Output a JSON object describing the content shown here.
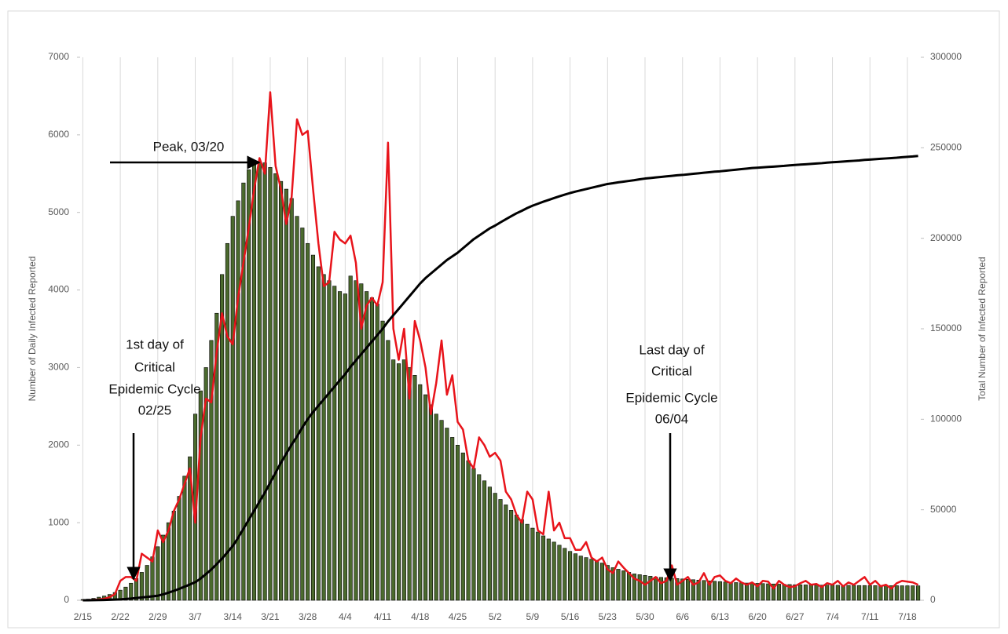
{
  "chart_data": {
    "type": "combo",
    "y_label": "Number of Daily Infected Reported",
    "y2_label": "Total Number of Infected Reported",
    "ylim": [
      0,
      7000
    ],
    "yticks": [
      0,
      1000,
      2000,
      3000,
      4000,
      5000,
      6000,
      7000
    ],
    "y2lim": [
      0,
      300000
    ],
    "y2ticks": [
      0,
      50000,
      100000,
      150000,
      200000,
      250000,
      300000
    ],
    "grid": "x",
    "categories": [
      "2/15",
      null,
      null,
      null,
      null,
      null,
      null,
      "2/22",
      null,
      null,
      null,
      null,
      null,
      null,
      "2/29",
      null,
      null,
      null,
      null,
      null,
      null,
      "3/7",
      null,
      null,
      null,
      null,
      null,
      null,
      "3/14",
      null,
      null,
      null,
      null,
      null,
      null,
      "3/21",
      null,
      null,
      null,
      null,
      null,
      null,
      "3/28",
      null,
      null,
      null,
      null,
      null,
      null,
      "4/4",
      null,
      null,
      null,
      null,
      null,
      null,
      "4/11",
      null,
      null,
      null,
      null,
      null,
      null,
      "4/18",
      null,
      null,
      null,
      null,
      null,
      null,
      "4/25",
      null,
      null,
      null,
      null,
      null,
      null,
      "5/2",
      null,
      null,
      null,
      null,
      null,
      null,
      "5/9",
      null,
      null,
      null,
      null,
      null,
      null,
      "5/16",
      null,
      null,
      null,
      null,
      null,
      null,
      "5/23",
      null,
      null,
      null,
      null,
      null,
      null,
      "5/30",
      null,
      null,
      null,
      null,
      null,
      null,
      "6/6",
      null,
      null,
      null,
      null,
      null,
      null,
      "6/13",
      null,
      null,
      null,
      null,
      null,
      null,
      "6/20",
      null,
      null,
      null,
      null,
      null,
      null,
      "6/27",
      null,
      null,
      null,
      null,
      null,
      null,
      "7/4",
      null,
      null,
      null,
      null,
      null,
      null,
      "7/11",
      null,
      null,
      null,
      null,
      null,
      null,
      "7/18",
      null,
      null
    ],
    "series": [
      {
        "type": "bar",
        "color": "#4b6a2e",
        "values": [
          10,
          15,
          25,
          40,
          55,
          75,
          100,
          130,
          170,
          220,
          280,
          360,
          450,
          560,
          690,
          840,
          1000,
          1150,
          1340,
          1600,
          1850,
          2400,
          2700,
          3000,
          3350,
          3700,
          4200,
          4600,
          4950,
          5150,
          5380,
          5550,
          5650,
          5650,
          5640,
          5580,
          5500,
          5400,
          5300,
          5180,
          4950,
          4800,
          4600,
          4450,
          4300,
          4200,
          4120,
          4050,
          3980,
          3950,
          4180,
          4120,
          4080,
          3980,
          3900,
          3820,
          3600,
          3350,
          3100,
          3050,
          3100,
          3000,
          2900,
          2780,
          2650,
          2520,
          2400,
          2320,
          2220,
          2100,
          2000,
          1900,
          1800,
          1700,
          1620,
          1540,
          1460,
          1380,
          1300,
          1230,
          1160,
          1100,
          1040,
          980,
          930,
          880,
          830,
          790,
          750,
          710,
          670,
          630,
          600,
          570,
          550,
          530,
          510,
          480,
          450,
          420,
          400,
          380,
          360,
          340,
          330,
          320,
          310,
          300,
          295,
          290,
          285,
          280,
          275,
          270,
          265,
          260,
          255,
          250,
          245,
          240,
          235,
          230,
          228,
          225,
          222,
          220,
          218,
          215,
          212,
          210,
          208,
          205,
          203,
          200,
          200,
          198,
          197,
          196,
          195,
          195,
          194,
          193,
          192,
          192,
          191,
          190,
          190,
          190,
          189,
          189,
          188,
          188,
          188,
          187,
          187,
          187,
          186
        ]
      },
      {
        "type": "line",
        "color": "#e8141b",
        "values": [
          0,
          2,
          5,
          10,
          20,
          40,
          80,
          250,
          300,
          300,
          250,
          600,
          550,
          500,
          900,
          750,
          900,
          1150,
          1300,
          1500,
          1700,
          1000,
          2100,
          2600,
          2550,
          3200,
          3700,
          3400,
          3300,
          3900,
          4350,
          4800,
          5300,
          5700,
          5500,
          6550,
          5600,
          5300,
          4850,
          5200,
          6200,
          6000,
          6050,
          5300,
          4600,
          4050,
          4100,
          4750,
          4650,
          4600,
          4700,
          4350,
          3500,
          3800,
          3900,
          3800,
          4100,
          5900,
          3500,
          3100,
          3500,
          2600,
          3600,
          3350,
          3000,
          2400,
          2800,
          3350,
          2650,
          2900,
          2300,
          2200,
          1800,
          1700,
          2100,
          2000,
          1850,
          1900,
          1800,
          1400,
          1300,
          1100,
          1000,
          1400,
          1300,
          900,
          850,
          1400,
          900,
          1000,
          800,
          800,
          650,
          650,
          750,
          550,
          500,
          550,
          400,
          350,
          500,
          420,
          350,
          280,
          250,
          200,
          250,
          300,
          220,
          250,
          450,
          200,
          250,
          300,
          200,
          230,
          350,
          200,
          300,
          320,
          250,
          220,
          280,
          230,
          200,
          230,
          180,
          250,
          240,
          150,
          250,
          200,
          170,
          180,
          220,
          250,
          200,
          210,
          170,
          220,
          200,
          250,
          180,
          230,
          200,
          250,
          300,
          200,
          250,
          180,
          200,
          150,
          220,
          250,
          240,
          230,
          200
        ]
      },
      {
        "type": "line",
        "axis": "y2",
        "color": "#000000",
        "values": [
          0,
          20,
          50,
          100,
          170,
          260,
          370,
          500,
          700,
          950,
          1250,
          1550,
          1850,
          2150,
          2500,
          3300,
          4200,
          5200,
          6300,
          7500,
          8700,
          10000,
          12000,
          14500,
          17000,
          20000,
          23000,
          26500,
          30000,
          34500,
          39500,
          44500,
          49500,
          54500,
          59500,
          65000,
          70500,
          76000,
          81000,
          86000,
          90500,
          95500,
          100000,
          104000,
          107500,
          111000,
          114500,
          118000,
          121500,
          125000,
          129000,
          132500,
          136000,
          139500,
          143000,
          146500,
          150000,
          154000,
          157500,
          161000,
          164500,
          168000,
          171500,
          175000,
          178000,
          180500,
          183000,
          185500,
          188000,
          190000,
          192000,
          194500,
          197000,
          199500,
          201500,
          203500,
          205500,
          207000,
          208800,
          210500,
          212200,
          213800,
          215200,
          216700,
          218000,
          219100,
          220200,
          221200,
          222200,
          223200,
          224100,
          225000,
          225800,
          226500,
          227200,
          227900,
          228600,
          229300,
          230000,
          230400,
          230900,
          231300,
          231700,
          232100,
          232600,
          233000,
          233300,
          233600,
          233900,
          234200,
          234500,
          234800,
          235000,
          235300,
          235600,
          235900,
          236200,
          236500,
          236800,
          237000,
          237300,
          237600,
          237900,
          238200,
          238500,
          238800,
          239000,
          239200,
          239400,
          239600,
          239800,
          240000,
          240300,
          240500,
          240700,
          240900,
          241100,
          241300,
          241500,
          241800,
          242000,
          242200,
          242400,
          242600,
          242800,
          243000,
          243300,
          243500,
          243700,
          243900,
          244100,
          244300,
          244500,
          244800,
          245000,
          245200,
          245500
        ]
      }
    ],
    "annotations": [
      {
        "lines": [
          "Peak, 03/20"
        ]
      },
      {
        "lines": [
          "1st day of",
          "Critical",
          "Epidemic Cycle",
          "02/25"
        ]
      },
      {
        "lines": [
          "Last day of",
          "Critical",
          "Epidemic Cycle",
          "06/04"
        ]
      }
    ]
  }
}
